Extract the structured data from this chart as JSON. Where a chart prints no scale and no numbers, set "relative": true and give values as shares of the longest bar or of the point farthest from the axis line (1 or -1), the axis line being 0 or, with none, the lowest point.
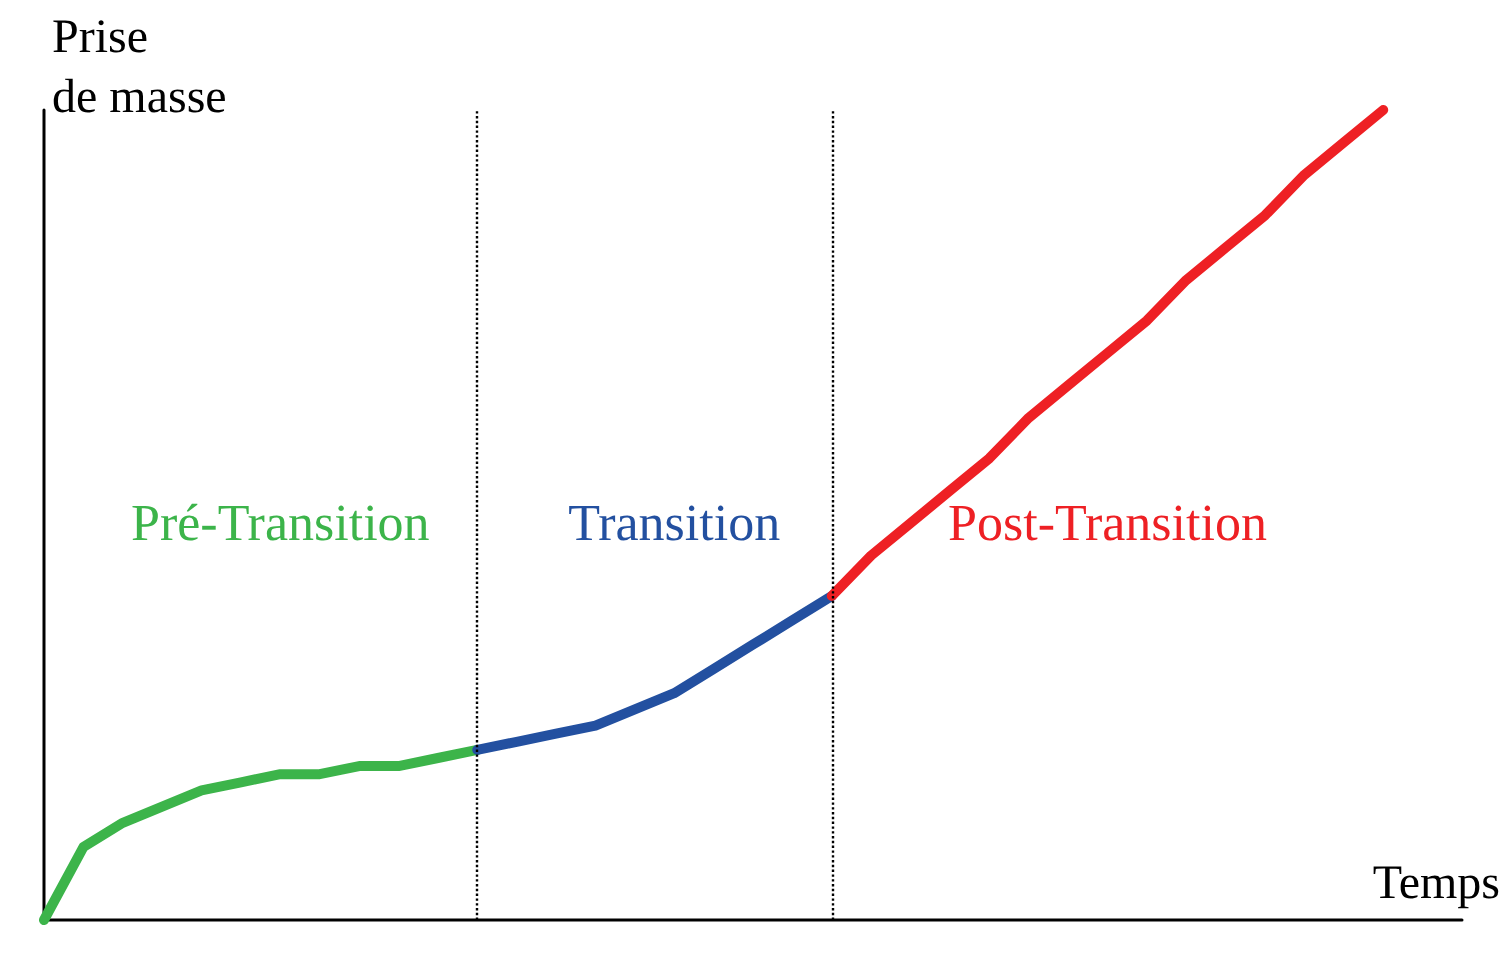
{
  "chart_data": {
    "type": "line",
    "relative": true,
    "xlabel": "Temps",
    "ylabel": "Prise\nde masse",
    "grid": false,
    "legend": false,
    "marker": "none",
    "line_style": "solid",
    "categories": [
      null,
      null,
      null,
      null,
      null,
      null,
      null,
      null,
      null,
      null,
      null,
      null,
      null,
      null,
      null,
      null,
      null,
      null,
      null,
      null,
      null,
      null,
      null,
      null,
      null,
      null,
      null,
      null,
      null,
      null,
      null,
      null,
      null,
      null,
      null,
      null,
      null
    ],
    "series": [
      {
        "name": "Pré-Transition",
        "color": "#3cb44a",
        "values": [
          0,
          0.09,
          0.12,
          0.14,
          0.16,
          0.17,
          0.18,
          0.18,
          0.19,
          0.19,
          0.2,
          0.21,
          null,
          null,
          null,
          null,
          null,
          null,
          null,
          null,
          null,
          null,
          null,
          null,
          null,
          null,
          null,
          null,
          null,
          null,
          null,
          null,
          null,
          null,
          null,
          null,
          null
        ]
      },
      {
        "name": "Transition",
        "color": "#2350a0",
        "values": [
          null,
          null,
          null,
          null,
          null,
          null,
          null,
          null,
          null,
          null,
          null,
          0.21,
          0.22,
          0.23,
          0.24,
          0.26,
          0.28,
          0.31,
          0.34,
          0.37,
          0.4,
          null,
          null,
          null,
          null,
          null,
          null,
          null,
          null,
          null,
          null,
          null,
          null,
          null,
          null,
          null,
          null
        ]
      },
      {
        "name": "Post-Transition",
        "color": "#ee2024",
        "values": [
          null,
          null,
          null,
          null,
          null,
          null,
          null,
          null,
          null,
          null,
          null,
          null,
          null,
          null,
          null,
          null,
          null,
          null,
          null,
          null,
          0.4,
          0.45,
          0.49,
          0.53,
          0.57,
          0.62,
          0.66,
          0.7,
          0.74,
          0.79,
          0.83,
          0.87,
          0.92,
          0.96,
          1,
          null,
          null
        ]
      }
    ]
  }
}
